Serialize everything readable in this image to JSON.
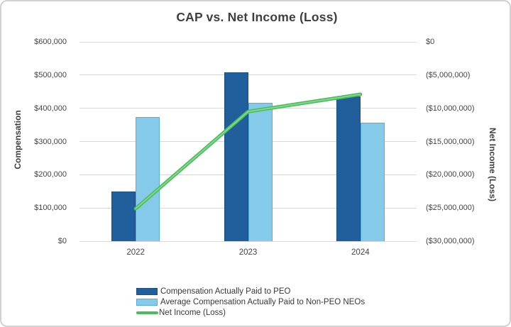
{
  "chart_data": {
    "type": "combo-bar-line",
    "title": "CAP vs. Net Income (Loss)",
    "categories": [
      "2022",
      "2023",
      "2024"
    ],
    "series": [
      {
        "name": "Compensation Actually Paid to PEO",
        "type": "bar",
        "axis": "left",
        "color": "#205e9c",
        "border_color": "#1a4f84",
        "values": [
          150000,
          508000,
          435000
        ]
      },
      {
        "name": "Average Compensation Actually Paid to Non-PEO NEOs",
        "type": "bar",
        "axis": "left",
        "color": "#85cbe9",
        "border_color": "#54aeda",
        "values": [
          373000,
          417000,
          356000
        ]
      },
      {
        "name": "Net Income (Loss)",
        "type": "line",
        "axis": "right",
        "color": "#4cbc5c",
        "highlight_color": "#83d98c",
        "values": [
          -25100000,
          -10500000,
          -7900000
        ]
      }
    ],
    "left_axis": {
      "title": "Compensation",
      "min": 0,
      "max": 600000,
      "tick_labels": [
        "$600,000",
        "$500,000",
        "$400,000",
        "$300,000",
        "$200,000",
        "$100,000",
        "$0"
      ]
    },
    "right_axis": {
      "title": "Net Income (Loss)",
      "min": -30000000,
      "max": 0,
      "tick_labels": [
        "$0",
        "($5,000,000)",
        "($10,000,000)",
        "($15,000,000)",
        "($20,000,000)",
        "($25,000,000)",
        "($30,000,000)"
      ]
    },
    "grid": true,
    "legend_position": "bottom",
    "style": {
      "gridline_color": "#d8d8d8",
      "text_color": "#444444",
      "title_color": "#3f3f3f",
      "background": "#ffffff",
      "frame_border": "#d3d1d1"
    }
  }
}
